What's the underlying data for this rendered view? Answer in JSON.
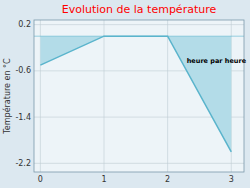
{
  "chart_data": {
    "type": "area",
    "title": "Evolution de la température",
    "y_label": "Température en °C",
    "x": [
      0,
      1,
      2,
      3
    ],
    "values": [
      -0.5,
      0.0,
      0.0,
      -2.0
    ],
    "color": "#5ab4cc",
    "xlim": [
      -0.1,
      3.2
    ],
    "ylim": [
      -2.35,
      0.28
    ],
    "xticks": [
      0,
      1,
      2,
      3
    ],
    "yticks": [
      0.2,
      -0.6,
      -1.4,
      -2.2
    ],
    "grid": true,
    "annotations": [
      {
        "text": "heure par heure",
        "x": 2.3,
        "y": -0.38
      }
    ]
  }
}
